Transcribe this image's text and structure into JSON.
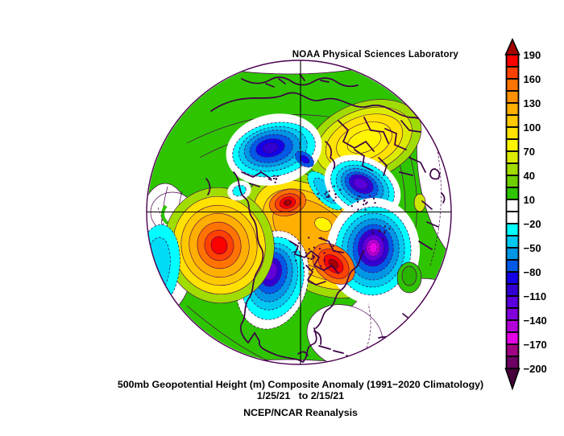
{
  "header": {
    "credit": "NOAA Physical Sciences Laboratory"
  },
  "caption": {
    "line1": "500mb Geopotential Height (m) Composite Anomaly (1991−2020 Climatology)",
    "line2": "1/25/21   to 2/15/21",
    "line3": "NCEP/NCAR Reanalysis"
  },
  "colorbar": {
    "tick_labels": [
      "190",
      "160",
      "130",
      "100",
      "70",
      "40",
      "10",
      "−20",
      "−50",
      "−80",
      "−110",
      "−140",
      "−170",
      "−200"
    ],
    "tick_step": 30,
    "box_step": 15,
    "box_colors": [
      "#FA0000",
      "#FF4100",
      "#FF7300",
      "#FF9100",
      "#FFAF00",
      "#FFC900",
      "#FFE200",
      "#FFF500",
      "#DCEC00",
      "#A0DC00",
      "#6ECE00",
      "#2EC400",
      "#FFFFFF",
      "#FFFFFF",
      "#00FFFF",
      "#00C8F0",
      "#0096E6",
      "#005AE6",
      "#1400E6",
      "#3200D2",
      "#5A00DC",
      "#8200DC",
      "#B400D8",
      "#E600E6",
      "#A00082",
      "#6E0064"
    ],
    "top_arrow_color": "#A50000",
    "bottom_arrow_color": "#46003C"
  },
  "colors": {
    "map_green": "#2EC400",
    "contour_line": "#4A0050",
    "coastline": "#3C0046",
    "crosshair": "#000000",
    "background": "#FFFFFF"
  },
  "chart_data": {
    "type": "heatmap",
    "title": "500mb Geopotential Height (m) Composite Anomaly (1991−2020 Climatology)",
    "subtitle": "1/25/21 to 2/15/21",
    "dataset_label": "NCEP/NCAR Reanalysis",
    "units": "m",
    "contour_interval": 15,
    "colorbar_ticks": [
      190,
      160,
      130,
      100,
      70,
      40,
      10,
      -20,
      -50,
      -80,
      -110,
      -140,
      -170,
      -200
    ],
    "colorbar_range": [
      -200,
      190
    ],
    "legend_position": "right",
    "view": "northern-hemisphere polar map",
    "anomaly_centers": [
      {
        "label": "North Pacific ridge",
        "sign": "positive",
        "approx_peak_m": 175
      },
      {
        "label": "Polar cap ridge",
        "sign": "positive",
        "approx_peak_m": 195
      },
      {
        "label": "Eastern North America ridge",
        "sign": "positive",
        "approx_peak_m": 190
      },
      {
        "label": "Scandinavia / NW Russia ridge",
        "sign": "positive",
        "approx_peak_m": 100
      },
      {
        "label": "Siberian Arctic trough",
        "sign": "negative",
        "approx_peak_m": -105
      },
      {
        "label": "Central Asia trough",
        "sign": "negative",
        "approx_peak_m": -120
      },
      {
        "label": "East Asia trough",
        "sign": "negative",
        "approx_peak_m": -165
      },
      {
        "label": "Western North America trough",
        "sign": "negative",
        "approx_peak_m": -125
      },
      {
        "label": "Eastern Pacific edge low",
        "sign": "negative",
        "approx_peak_m": -35
      }
    ]
  }
}
